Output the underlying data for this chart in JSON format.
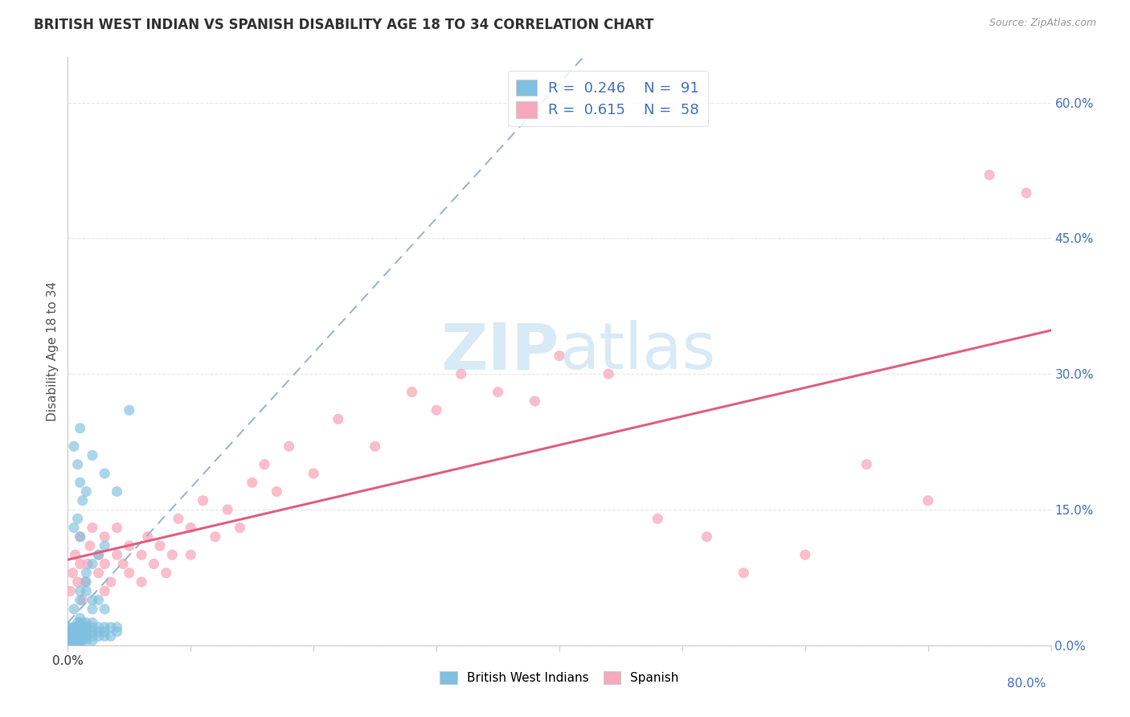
{
  "title": "BRITISH WEST INDIAN VS SPANISH DISABILITY AGE 18 TO 34 CORRELATION CHART",
  "source": "Source: ZipAtlas.com",
  "ylabel": "Disability Age 18 to 34",
  "xlim": [
    0.0,
    0.8
  ],
  "ylim": [
    0.0,
    0.65
  ],
  "y_ticks_right": [
    0.0,
    0.15,
    0.3,
    0.45,
    0.6
  ],
  "y_tick_labels_right": [
    "0.0%",
    "15.0%",
    "30.0%",
    "45.0%",
    "60.0%"
  ],
  "bwi_R": 0.246,
  "bwi_N": 91,
  "spanish_R": 0.615,
  "spanish_N": 58,
  "bwi_color": "#7fbfdf",
  "spanish_color": "#f8a8bc",
  "bwi_line_color": "#9ab8cc",
  "spanish_line_color": "#e06080",
  "watermark_color": "#d8eaf5",
  "background_color": "#ffffff",
  "grid_color": "#e8e8e8",
  "bwi_scatter_x": [
    0.0,
    0.0,
    0.0,
    0.0,
    0.0,
    0.0,
    0.0,
    0.0,
    0.0,
    0.0,
    0.005,
    0.005,
    0.005,
    0.005,
    0.005,
    0.005,
    0.005,
    0.005,
    0.005,
    0.005,
    0.008,
    0.008,
    0.008,
    0.008,
    0.008,
    0.008,
    0.008,
    0.008,
    0.008,
    0.01,
    0.01,
    0.01,
    0.01,
    0.01,
    0.01,
    0.01,
    0.01,
    0.01,
    0.012,
    0.012,
    0.012,
    0.012,
    0.012,
    0.012,
    0.015,
    0.015,
    0.015,
    0.015,
    0.015,
    0.02,
    0.02,
    0.02,
    0.02,
    0.02,
    0.025,
    0.025,
    0.025,
    0.03,
    0.03,
    0.03,
    0.035,
    0.035,
    0.04,
    0.04,
    0.005,
    0.008,
    0.01,
    0.012,
    0.015,
    0.005,
    0.008,
    0.01,
    0.015,
    0.02,
    0.025,
    0.03,
    0.01,
    0.02,
    0.03,
    0.04,
    0.05,
    0.01,
    0.015,
    0.02,
    0.005,
    0.01,
    0.015,
    0.02,
    0.025,
    0.03
  ],
  "bwi_scatter_y": [
    0.005,
    0.005,
    0.005,
    0.01,
    0.01,
    0.01,
    0.015,
    0.015,
    0.02,
    0.02,
    0.005,
    0.005,
    0.005,
    0.01,
    0.01,
    0.01,
    0.015,
    0.015,
    0.02,
    0.02,
    0.005,
    0.005,
    0.01,
    0.01,
    0.01,
    0.015,
    0.015,
    0.02,
    0.025,
    0.005,
    0.005,
    0.01,
    0.01,
    0.015,
    0.015,
    0.02,
    0.025,
    0.03,
    0.005,
    0.01,
    0.01,
    0.015,
    0.02,
    0.025,
    0.005,
    0.01,
    0.015,
    0.02,
    0.025,
    0.005,
    0.01,
    0.015,
    0.02,
    0.025,
    0.01,
    0.015,
    0.02,
    0.01,
    0.015,
    0.02,
    0.01,
    0.02,
    0.015,
    0.02,
    0.22,
    0.2,
    0.18,
    0.16,
    0.17,
    0.13,
    0.14,
    0.12,
    0.08,
    0.09,
    0.1,
    0.11,
    0.24,
    0.21,
    0.19,
    0.17,
    0.26,
    0.06,
    0.07,
    0.05,
    0.04,
    0.05,
    0.06,
    0.04,
    0.05,
    0.04
  ],
  "spanish_scatter_x": [
    0.002,
    0.004,
    0.006,
    0.008,
    0.01,
    0.01,
    0.012,
    0.014,
    0.016,
    0.018,
    0.02,
    0.025,
    0.025,
    0.03,
    0.03,
    0.03,
    0.035,
    0.04,
    0.04,
    0.045,
    0.05,
    0.05,
    0.06,
    0.06,
    0.065,
    0.07,
    0.075,
    0.08,
    0.085,
    0.09,
    0.1,
    0.1,
    0.11,
    0.12,
    0.13,
    0.14,
    0.15,
    0.16,
    0.17,
    0.18,
    0.2,
    0.22,
    0.25,
    0.28,
    0.3,
    0.32,
    0.35,
    0.38,
    0.4,
    0.44,
    0.48,
    0.52,
    0.55,
    0.6,
    0.65,
    0.7,
    0.75,
    0.78
  ],
  "spanish_scatter_y": [
    0.06,
    0.08,
    0.1,
    0.07,
    0.09,
    0.12,
    0.05,
    0.07,
    0.09,
    0.11,
    0.13,
    0.08,
    0.1,
    0.06,
    0.09,
    0.12,
    0.07,
    0.1,
    0.13,
    0.09,
    0.08,
    0.11,
    0.07,
    0.1,
    0.12,
    0.09,
    0.11,
    0.08,
    0.1,
    0.14,
    0.1,
    0.13,
    0.16,
    0.12,
    0.15,
    0.13,
    0.18,
    0.2,
    0.17,
    0.22,
    0.19,
    0.25,
    0.22,
    0.28,
    0.26,
    0.3,
    0.28,
    0.27,
    0.32,
    0.3,
    0.14,
    0.12,
    0.08,
    0.1,
    0.2,
    0.16,
    0.52,
    0.5
  ]
}
